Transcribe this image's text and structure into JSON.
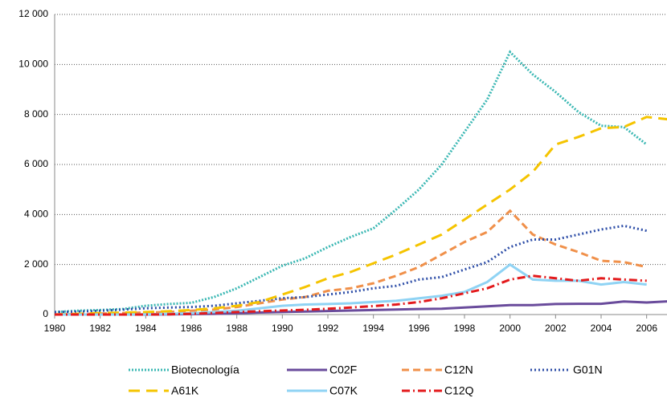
{
  "chart_data": {
    "type": "line",
    "x": [
      1980,
      1981,
      1982,
      1983,
      1984,
      1985,
      1986,
      1987,
      1988,
      1989,
      1990,
      1991,
      1992,
      1993,
      1994,
      1995,
      1996,
      1997,
      1998,
      1999,
      2000,
      2001,
      2002,
      2003,
      2004,
      2005,
      2006,
      2007
    ],
    "xlim": [
      1980,
      2007
    ],
    "xticks": [
      1980,
      1982,
      1984,
      1986,
      1988,
      1990,
      1992,
      1994,
      1996,
      1998,
      2000,
      2002,
      2004,
      2006
    ],
    "ylim": [
      0,
      12000
    ],
    "yticks": [
      0,
      {
        "value": 2000,
        "label": "2 000"
      },
      {
        "value": 4000,
        "label": "4 000"
      },
      {
        "value": 6000,
        "label": "6 000"
      },
      {
        "value": 8000,
        "label": "8 000"
      },
      {
        "value": 10000,
        "label": "10 000"
      },
      {
        "value": 12000,
        "label": "12 000"
      }
    ],
    "grid": true,
    "legend": "bottom",
    "series": [
      {
        "name": "Biotecnología",
        "color": "#3cb8b4",
        "dash": "2,2",
        "values": [
          100,
          150,
          180,
          220,
          350,
          420,
          470,
          700,
          1050,
          1500,
          1950,
          2250,
          2700,
          3100,
          3450,
          4200,
          5000,
          6000,
          7300,
          8600,
          10500,
          9600,
          8900,
          8100,
          7550,
          7500,
          6800,
          null
        ]
      },
      {
        "name": "C02F",
        "color": "#6a4c9c",
        "dash": "none",
        "values": [
          0,
          0,
          0,
          0,
          0,
          10,
          20,
          30,
          50,
          80,
          100,
          120,
          140,
          160,
          180,
          200,
          220,
          230,
          280,
          330,
          380,
          380,
          420,
          430,
          430,
          520,
          480,
          530
        ]
      },
      {
        "name": "C12N",
        "color": "#f0904a",
        "dash": "9,5",
        "values": [
          0,
          20,
          40,
          60,
          80,
          100,
          150,
          200,
          300,
          450,
          600,
          700,
          950,
          1050,
          1250,
          1550,
          1900,
          2400,
          2900,
          3300,
          4150,
          3200,
          2800,
          2500,
          2150,
          2100,
          1900,
          null
        ]
      },
      {
        "name": "G01N",
        "color": "#2f4fa8",
        "dash": "2,3",
        "values": [
          100,
          120,
          150,
          200,
          250,
          280,
          300,
          350,
          450,
          550,
          650,
          700,
          800,
          900,
          1050,
          1150,
          1400,
          1500,
          1800,
          2100,
          2700,
          3000,
          3000,
          3200,
          3400,
          3550,
          3350,
          null
        ]
      },
      {
        "name": "A61K",
        "color": "#f5c400",
        "dash": "14,8",
        "values": [
          0,
          30,
          60,
          80,
          100,
          130,
          180,
          250,
          350,
          500,
          800,
          1100,
          1450,
          1700,
          2050,
          2400,
          2800,
          3200,
          3800,
          4400,
          5000,
          5700,
          6800,
          7100,
          7450,
          7500,
          7900,
          7800
        ]
      },
      {
        "name": "C07K",
        "color": "#8fd3f4",
        "dash": "none",
        "values": [
          0,
          0,
          0,
          0,
          10,
          30,
          50,
          100,
          150,
          250,
          350,
          400,
          420,
          450,
          500,
          550,
          650,
          750,
          900,
          1300,
          2000,
          1400,
          1350,
          1350,
          1200,
          1300,
          1200,
          null
        ]
      },
      {
        "name": "C12Q",
        "color": "#e31a1c",
        "dash": "10,4,2,4",
        "values": [
          0,
          0,
          0,
          0,
          0,
          10,
          30,
          60,
          100,
          130,
          160,
          190,
          230,
          280,
          340,
          400,
          500,
          650,
          850,
          1050,
          1400,
          1550,
          1450,
          1350,
          1450,
          1400,
          1350,
          null
        ]
      }
    ]
  }
}
